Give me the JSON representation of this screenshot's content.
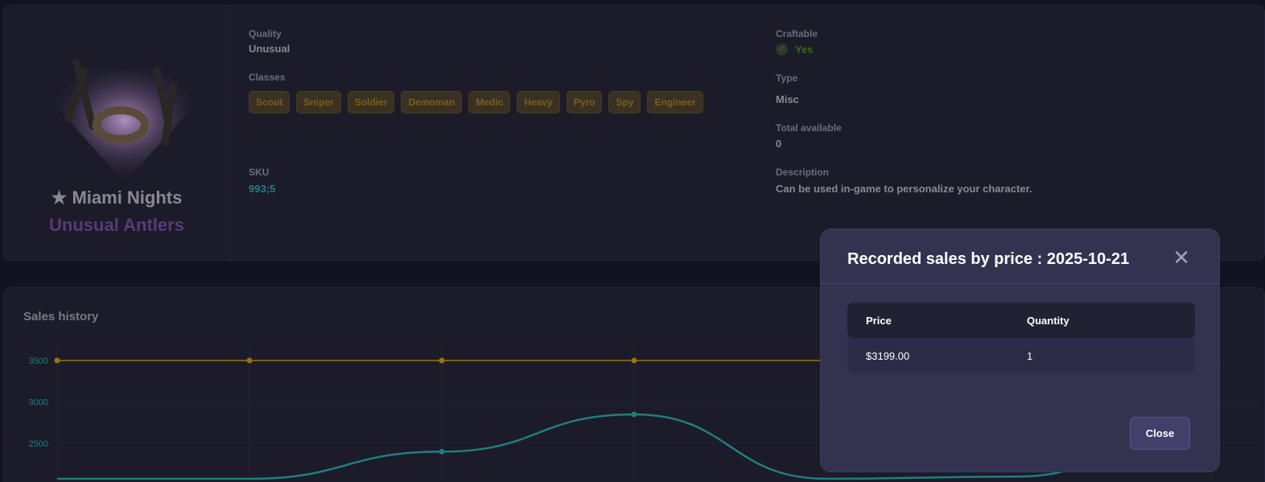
{
  "item": {
    "effect_name": "★ Miami Nights",
    "item_name": "Unusual Antlers",
    "quality_label": "Quality",
    "quality": "Unusual",
    "classes_label": "Classes",
    "classes": [
      "Scout",
      "Sniper",
      "Soldier",
      "Demoman",
      "Medic",
      "Heavy",
      "Pyro",
      "Spy",
      "Engineer"
    ],
    "sku_label": "SKU",
    "sku": "993;5",
    "craftable_label": "Craftable",
    "craftable": "Yes",
    "type_label": "Type",
    "type": "Misc",
    "total_label": "Total available",
    "total": "0",
    "description_label": "Description",
    "description": "Can be used in-game to personalize your character."
  },
  "sales": {
    "title": "Sales history"
  },
  "chart_data": {
    "type": "line",
    "title": "Sales history",
    "yticks": [
      3500,
      3000,
      2500
    ],
    "series": [
      {
        "color": "#a07010",
        "values": [
          3500,
          3500,
          3500,
          3500,
          3500,
          3500,
          3500
        ]
      },
      {
        "color": "#1f7f80",
        "values": [
          1500,
          1800,
          2400,
          2850,
          1600,
          2100,
          2800
        ]
      }
    ],
    "grid": true
  },
  "modal": {
    "title": "Recorded sales by price : 2025-10-21",
    "columns": [
      "Price",
      "Quantity"
    ],
    "rows": [
      [
        "$3199.00",
        "1"
      ]
    ],
    "close_label": "Close"
  }
}
